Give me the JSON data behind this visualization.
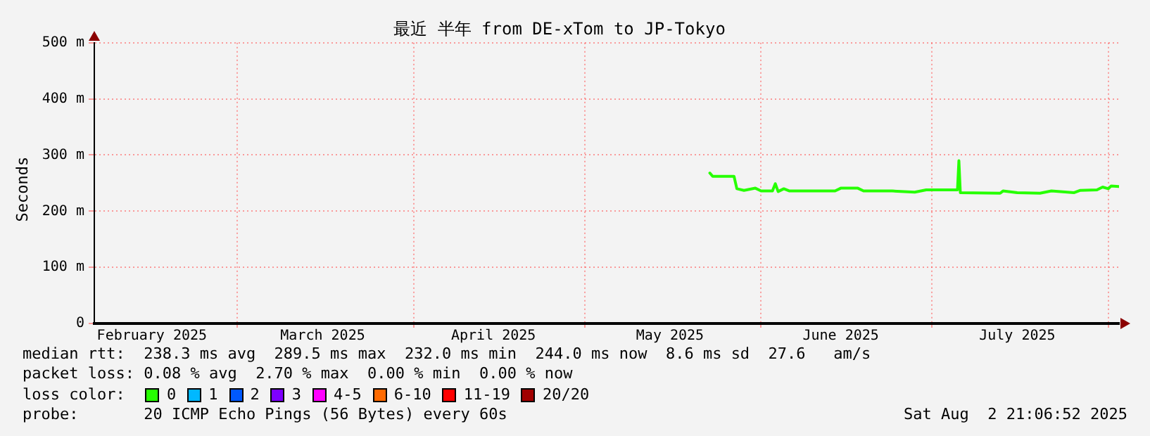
{
  "chart_data": {
    "type": "line",
    "title": "最近 半年 from DE-xTom to JP-Tokyo",
    "ylabel": "Seconds",
    "xlim": [
      "2025-02-03T21:06",
      "2025-08-02T21:06"
    ],
    "xticks": [
      {
        "value": "2025-02-14",
        "label": "February 2025"
      },
      {
        "value": "2025-03-01",
        "label": null
      },
      {
        "value": "2025-03-16",
        "label": "March 2025"
      },
      {
        "value": "2025-04-01",
        "label": null
      },
      {
        "value": "2025-04-15",
        "label": "April 2025"
      },
      {
        "value": "2025-05-01",
        "label": null
      },
      {
        "value": "2025-05-16",
        "label": "May 2025"
      },
      {
        "value": "2025-06-01",
        "label": null
      },
      {
        "value": "2025-06-15",
        "label": "June 2025"
      },
      {
        "value": "2025-07-01",
        "label": null
      },
      {
        "value": "2025-07-16",
        "label": "July 2025"
      },
      {
        "value": "2025-08-01",
        "label": null
      }
    ],
    "ylim": [
      0,
      500
    ],
    "yticks": [
      0,
      {
        "value": 100,
        "label": "100 m"
      },
      {
        "value": 200,
        "label": "200 m"
      },
      {
        "value": 300,
        "label": "300 m"
      },
      {
        "value": 400,
        "label": "400 m"
      },
      {
        "value": 500,
        "label": "500 m"
      }
    ],
    "grid": true,
    "legend": "bottom",
    "legend_title": "loss color:",
    "marker": "none",
    "line_style": "solid",
    "series": [
      {
        "color": "#26ff00",
        "x": [
          "2025-05-23T00:00",
          "2025-05-23T12:00",
          "2025-05-27T06:00",
          "2025-05-27T18:00",
          "2025-05-29T00:00",
          "2025-05-31T00:00",
          "2025-06-01T00:00",
          "2025-06-03T00:00",
          "2025-06-03T12:00",
          "2025-06-04T00:00",
          "2025-06-05T00:00",
          "2025-06-06T00:00",
          "2025-06-10T00:00",
          "2025-06-14T00:00",
          "2025-06-15T00:00",
          "2025-06-18T00:00",
          "2025-06-19T00:00",
          "2025-06-24T00:00",
          "2025-06-28T00:00",
          "2025-06-30T00:00",
          "2025-07-05T12:00",
          "2025-07-05T18:00",
          "2025-07-06T00:00",
          "2025-07-13T00:00",
          "2025-07-13T12:00",
          "2025-07-16T00:00",
          "2025-07-20T00:00",
          "2025-07-22T00:00",
          "2025-07-26T00:00",
          "2025-07-27T00:00",
          "2025-07-30T00:00",
          "2025-07-31T00:00",
          "2025-08-01T00:00",
          "2025-08-01T12:00",
          "2025-08-02T21:06"
        ],
        "values": [
          268,
          262,
          262,
          240,
          237,
          241,
          236,
          236,
          249,
          235,
          240,
          236,
          236,
          236,
          241,
          241,
          236,
          236,
          234,
          238,
          238,
          290,
          233,
          232,
          236,
          233,
          232,
          236,
          233,
          237,
          238,
          243,
          240,
          245,
          244
        ]
      },
      {
        "name": "0",
        "color": "#26ff00"
      },
      {
        "name": "1",
        "color": "#00b8ff"
      },
      {
        "name": "2",
        "color": "#0059ff"
      },
      {
        "name": "3",
        "color": "#7e00ff"
      },
      {
        "name": "4-5",
        "color": "#ff00ff"
      },
      {
        "name": "6-10",
        "color": "#ff6a00"
      },
      {
        "name": "11-19",
        "color": "#ff0000"
      },
      {
        "name": "20/20",
        "color": "#a10000"
      }
    ],
    "annotations": [
      "median rtt:  238.3 ms avg  289.5 ms max  232.0 ms min  244.0 ms now  8.6 ms sd  27.6   am/s",
      "packet loss: 0.08 % avg  2.70 % max  0.00 % min  0.00 % now",
      "probe:       20 ICMP Echo Pings (56 Bytes) every 60s",
      "Sat Aug  2 21:06:52 2025"
    ]
  }
}
